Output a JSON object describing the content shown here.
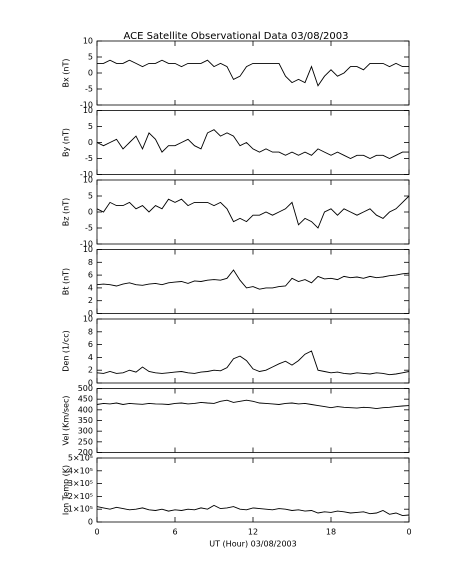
{
  "title": "ACE Satellite Observational Data   03/08/2003",
  "chart_data": [
    {
      "type": "line",
      "ylabel": "Bx (nT)",
      "color": "#000000",
      "ylim": [
        -10,
        10
      ],
      "yticks": [
        -10,
        -5,
        0,
        5,
        10
      ],
      "xlim": [
        0,
        24
      ],
      "xticks": [
        0,
        6,
        12,
        18,
        {
          "value": 24,
          "label": "0"
        }
      ],
      "x": [
        0,
        0.5,
        1,
        1.5,
        2,
        2.5,
        3,
        3.5,
        4,
        4.5,
        5,
        5.5,
        6,
        6.5,
        7,
        7.5,
        8,
        8.5,
        9,
        9.5,
        10,
        10.5,
        11,
        11.5,
        12,
        12.5,
        13,
        13.5,
        14,
        14.5,
        15,
        15.5,
        16,
        16.5,
        17,
        17.5,
        18,
        18.5,
        19,
        19.5,
        20,
        20.5,
        21,
        21.5,
        22,
        22.5,
        23,
        23.5,
        24
      ],
      "values": [
        3,
        3,
        4,
        3,
        3,
        4,
        3,
        2,
        3,
        3,
        4,
        3,
        3,
        2,
        3,
        3,
        3,
        4,
        2,
        3,
        2,
        -2,
        -1,
        2,
        3,
        3,
        3,
        3,
        3,
        -1,
        -3,
        -2,
        -3,
        2,
        -4,
        -1,
        1,
        -1,
        0,
        2,
        2,
        1,
        3,
        3,
        3,
        2,
        3,
        2,
        2
      ]
    },
    {
      "type": "line",
      "ylabel": "By (nT)",
      "color": "#000000",
      "ylim": [
        -10,
        10
      ],
      "yticks": [
        -10,
        -5,
        0,
        5,
        10
      ],
      "xlim": [
        0,
        24
      ],
      "xticks": [
        0,
        6,
        12,
        18,
        {
          "value": 24,
          "label": "0"
        }
      ],
      "x": [
        0,
        0.5,
        1,
        1.5,
        2,
        2.5,
        3,
        3.5,
        4,
        4.5,
        5,
        5.5,
        6,
        6.5,
        7,
        7.5,
        8,
        8.5,
        9,
        9.5,
        10,
        10.5,
        11,
        11.5,
        12,
        12.5,
        13,
        13.5,
        14,
        14.5,
        15,
        15.5,
        16,
        16.5,
        17,
        17.5,
        18,
        18.5,
        19,
        19.5,
        20,
        20.5,
        21,
        21.5,
        22,
        22.5,
        23,
        23.5,
        24
      ],
      "values": [
        0,
        -1,
        0,
        1,
        -2,
        0,
        2,
        -2,
        3,
        1,
        -3,
        -1,
        -1,
        0,
        1,
        -1,
        -2,
        3,
        4,
        2,
        3,
        2,
        -1,
        0,
        -2,
        -3,
        -2,
        -3,
        -3,
        -4,
        -3,
        -4,
        -3,
        -4,
        -2,
        -3,
        -4,
        -3,
        -4,
        -5,
        -4,
        -4,
        -5,
        -4,
        -4,
        -5,
        -4,
        -3,
        -3
      ]
    },
    {
      "type": "line",
      "ylabel": "Bz (nT)",
      "color": "#000000",
      "ylim": [
        -10,
        10
      ],
      "yticks": [
        -10,
        -5,
        0,
        5,
        10
      ],
      "xlim": [
        0,
        24
      ],
      "xticks": [
        0,
        6,
        12,
        18,
        {
          "value": 24,
          "label": "0"
        }
      ],
      "x": [
        0,
        0.5,
        1,
        1.5,
        2,
        2.5,
        3,
        3.5,
        4,
        4.5,
        5,
        5.5,
        6,
        6.5,
        7,
        7.5,
        8,
        8.5,
        9,
        9.5,
        10,
        10.5,
        11,
        11.5,
        12,
        12.5,
        13,
        13.5,
        14,
        14.5,
        15,
        15.5,
        16,
        16.5,
        17,
        17.5,
        18,
        18.5,
        19,
        19.5,
        20,
        20.5,
        21,
        21.5,
        22,
        22.5,
        23,
        23.5,
        24
      ],
      "values": [
        1,
        0,
        3,
        2,
        2,
        3,
        1,
        2,
        0,
        2,
        1,
        4,
        3,
        4,
        2,
        3,
        3,
        3,
        2,
        3,
        1,
        -3,
        -2,
        -3,
        -1,
        -1,
        0,
        -1,
        0,
        1,
        3,
        -4,
        -2,
        -3,
        -5,
        0,
        1,
        -1,
        1,
        0,
        -1,
        0,
        1,
        -1,
        -2,
        0,
        1,
        3,
        5
      ]
    },
    {
      "type": "line",
      "ylabel": "Bt (nT)",
      "color": "#000000",
      "ylim": [
        0,
        10
      ],
      "yticks": [
        0,
        2,
        4,
        6,
        8,
        10
      ],
      "xlim": [
        0,
        24
      ],
      "xticks": [
        0,
        6,
        12,
        18,
        {
          "value": 24,
          "label": "0"
        }
      ],
      "x": [
        0,
        0.5,
        1,
        1.5,
        2,
        2.5,
        3,
        3.5,
        4,
        4.5,
        5,
        5.5,
        6,
        6.5,
        7,
        7.5,
        8,
        8.5,
        9,
        9.5,
        10,
        10.5,
        11,
        11.5,
        12,
        12.5,
        13,
        13.5,
        14,
        14.5,
        15,
        15.5,
        16,
        16.5,
        17,
        17.5,
        18,
        18.5,
        19,
        19.5,
        20,
        20.5,
        21,
        21.5,
        22,
        22.5,
        23,
        23.5,
        24
      ],
      "values": [
        4.5,
        4.6,
        4.5,
        4.3,
        4.6,
        4.8,
        4.5,
        4.4,
        4.6,
        4.7,
        4.5,
        4.8,
        4.9,
        5,
        4.7,
        5.1,
        5,
        5.2,
        5.3,
        5.2,
        5.5,
        6.8,
        5.2,
        4,
        4.2,
        3.8,
        4,
        4,
        4.2,
        4.3,
        5.5,
        5,
        5.3,
        4.8,
        5.8,
        5.4,
        5.5,
        5.3,
        5.8,
        5.6,
        5.7,
        5.5,
        5.8,
        5.6,
        5.7,
        5.9,
        6,
        6.2,
        6.3
      ]
    },
    {
      "type": "line",
      "ylabel": "Den (1/cc)",
      "color": "#000000",
      "ylim": [
        0,
        10
      ],
      "yticks": [
        0,
        2,
        4,
        6,
        8,
        10
      ],
      "xlim": [
        0,
        24
      ],
      "xticks": [
        0,
        6,
        12,
        18,
        {
          "value": 24,
          "label": "0"
        }
      ],
      "x": [
        0,
        0.5,
        1,
        1.5,
        2,
        2.5,
        3,
        3.5,
        4,
        4.5,
        5,
        5.5,
        6,
        6.5,
        7,
        7.5,
        8,
        8.5,
        9,
        9.5,
        10,
        10.5,
        11,
        11.5,
        12,
        12.5,
        13,
        13.5,
        14,
        14.5,
        15,
        15.5,
        16,
        16.5,
        17,
        17.5,
        18,
        18.5,
        19,
        19.5,
        20,
        20.5,
        21,
        21.5,
        22,
        22.5,
        23,
        23.5,
        24
      ],
      "values": [
        1.6,
        1.5,
        1.8,
        1.5,
        1.6,
        2,
        1.7,
        2.5,
        1.8,
        1.6,
        1.5,
        1.6,
        1.7,
        1.8,
        1.6,
        1.5,
        1.7,
        1.8,
        2,
        1.9,
        2.4,
        3.8,
        4.2,
        3.5,
        2.2,
        1.8,
        2,
        2.5,
        3,
        3.4,
        2.8,
        3.5,
        4.5,
        5,
        2,
        1.8,
        1.6,
        1.7,
        1.5,
        1.4,
        1.6,
        1.5,
        1.4,
        1.6,
        1.5,
        1.3,
        1.4,
        1.6,
        1.8
      ]
    },
    {
      "type": "line",
      "ylabel": "Vel (Km/sec)",
      "color": "#000000",
      "ylim": [
        200,
        500
      ],
      "yticks": [
        200,
        250,
        300,
        350,
        400,
        450,
        500
      ],
      "xlim": [
        0,
        24
      ],
      "xticks": [
        0,
        6,
        12,
        18,
        {
          "value": 24,
          "label": "0"
        }
      ],
      "x": [
        0,
        0.5,
        1,
        1.5,
        2,
        2.5,
        3,
        3.5,
        4,
        4.5,
        5,
        5.5,
        6,
        6.5,
        7,
        7.5,
        8,
        8.5,
        9,
        9.5,
        10,
        10.5,
        11,
        11.5,
        12,
        12.5,
        13,
        13.5,
        14,
        14.5,
        15,
        15.5,
        16,
        16.5,
        17,
        17.5,
        18,
        18.5,
        19,
        19.5,
        20,
        20.5,
        21,
        21.5,
        22,
        22.5,
        23,
        23.5,
        24
      ],
      "values": [
        425,
        430,
        428,
        432,
        425,
        430,
        428,
        426,
        430,
        428,
        427,
        425,
        430,
        432,
        428,
        430,
        435,
        432,
        430,
        440,
        445,
        435,
        440,
        445,
        440,
        432,
        430,
        428,
        425,
        430,
        432,
        428,
        430,
        425,
        420,
        415,
        410,
        415,
        412,
        410,
        408,
        412,
        410,
        406,
        410,
        412,
        415,
        418,
        420
      ]
    },
    {
      "type": "line",
      "ylabel": "Ion Temp (K)",
      "xlabel": "UT (Hour)   03/08/2003",
      "color": "#000000",
      "ylim": [
        0,
        500000
      ],
      "yticks": [
        0,
        {
          "value": 100000,
          "label": "1×10⁵"
        },
        {
          "value": 200000,
          "label": "2×10⁵"
        },
        {
          "value": 300000,
          "label": "3×10⁵"
        },
        {
          "value": 400000,
          "label": "4×10⁵"
        },
        {
          "value": 500000,
          "label": "5×10⁵"
        }
      ],
      "xlim": [
        0,
        24
      ],
      "xticks": [
        0,
        6,
        12,
        18,
        {
          "value": 24,
          "label": "0"
        }
      ],
      "x": [
        0,
        0.5,
        1,
        1.5,
        2,
        2.5,
        3,
        3.5,
        4,
        4.5,
        5,
        5.5,
        6,
        6.5,
        7,
        7.5,
        8,
        8.5,
        9,
        9.5,
        10,
        10.5,
        11,
        11.5,
        12,
        12.5,
        13,
        13.5,
        14,
        14.5,
        15,
        15.5,
        16,
        16.5,
        17,
        17.5,
        18,
        18.5,
        19,
        19.5,
        20,
        20.5,
        21,
        21.5,
        22,
        22.5,
        23,
        23.5,
        24
      ],
      "values": [
        120000,
        110000,
        100000,
        115000,
        105000,
        95000,
        100000,
        110000,
        95000,
        90000,
        100000,
        85000,
        95000,
        90000,
        100000,
        95000,
        110000,
        100000,
        130000,
        105000,
        110000,
        120000,
        100000,
        95000,
        110000,
        105000,
        100000,
        95000,
        105000,
        100000,
        90000,
        95000,
        85000,
        90000,
        70000,
        80000,
        75000,
        85000,
        80000,
        70000,
        75000,
        80000,
        65000,
        70000,
        90000,
        60000,
        70000,
        50000,
        55000
      ]
    }
  ]
}
